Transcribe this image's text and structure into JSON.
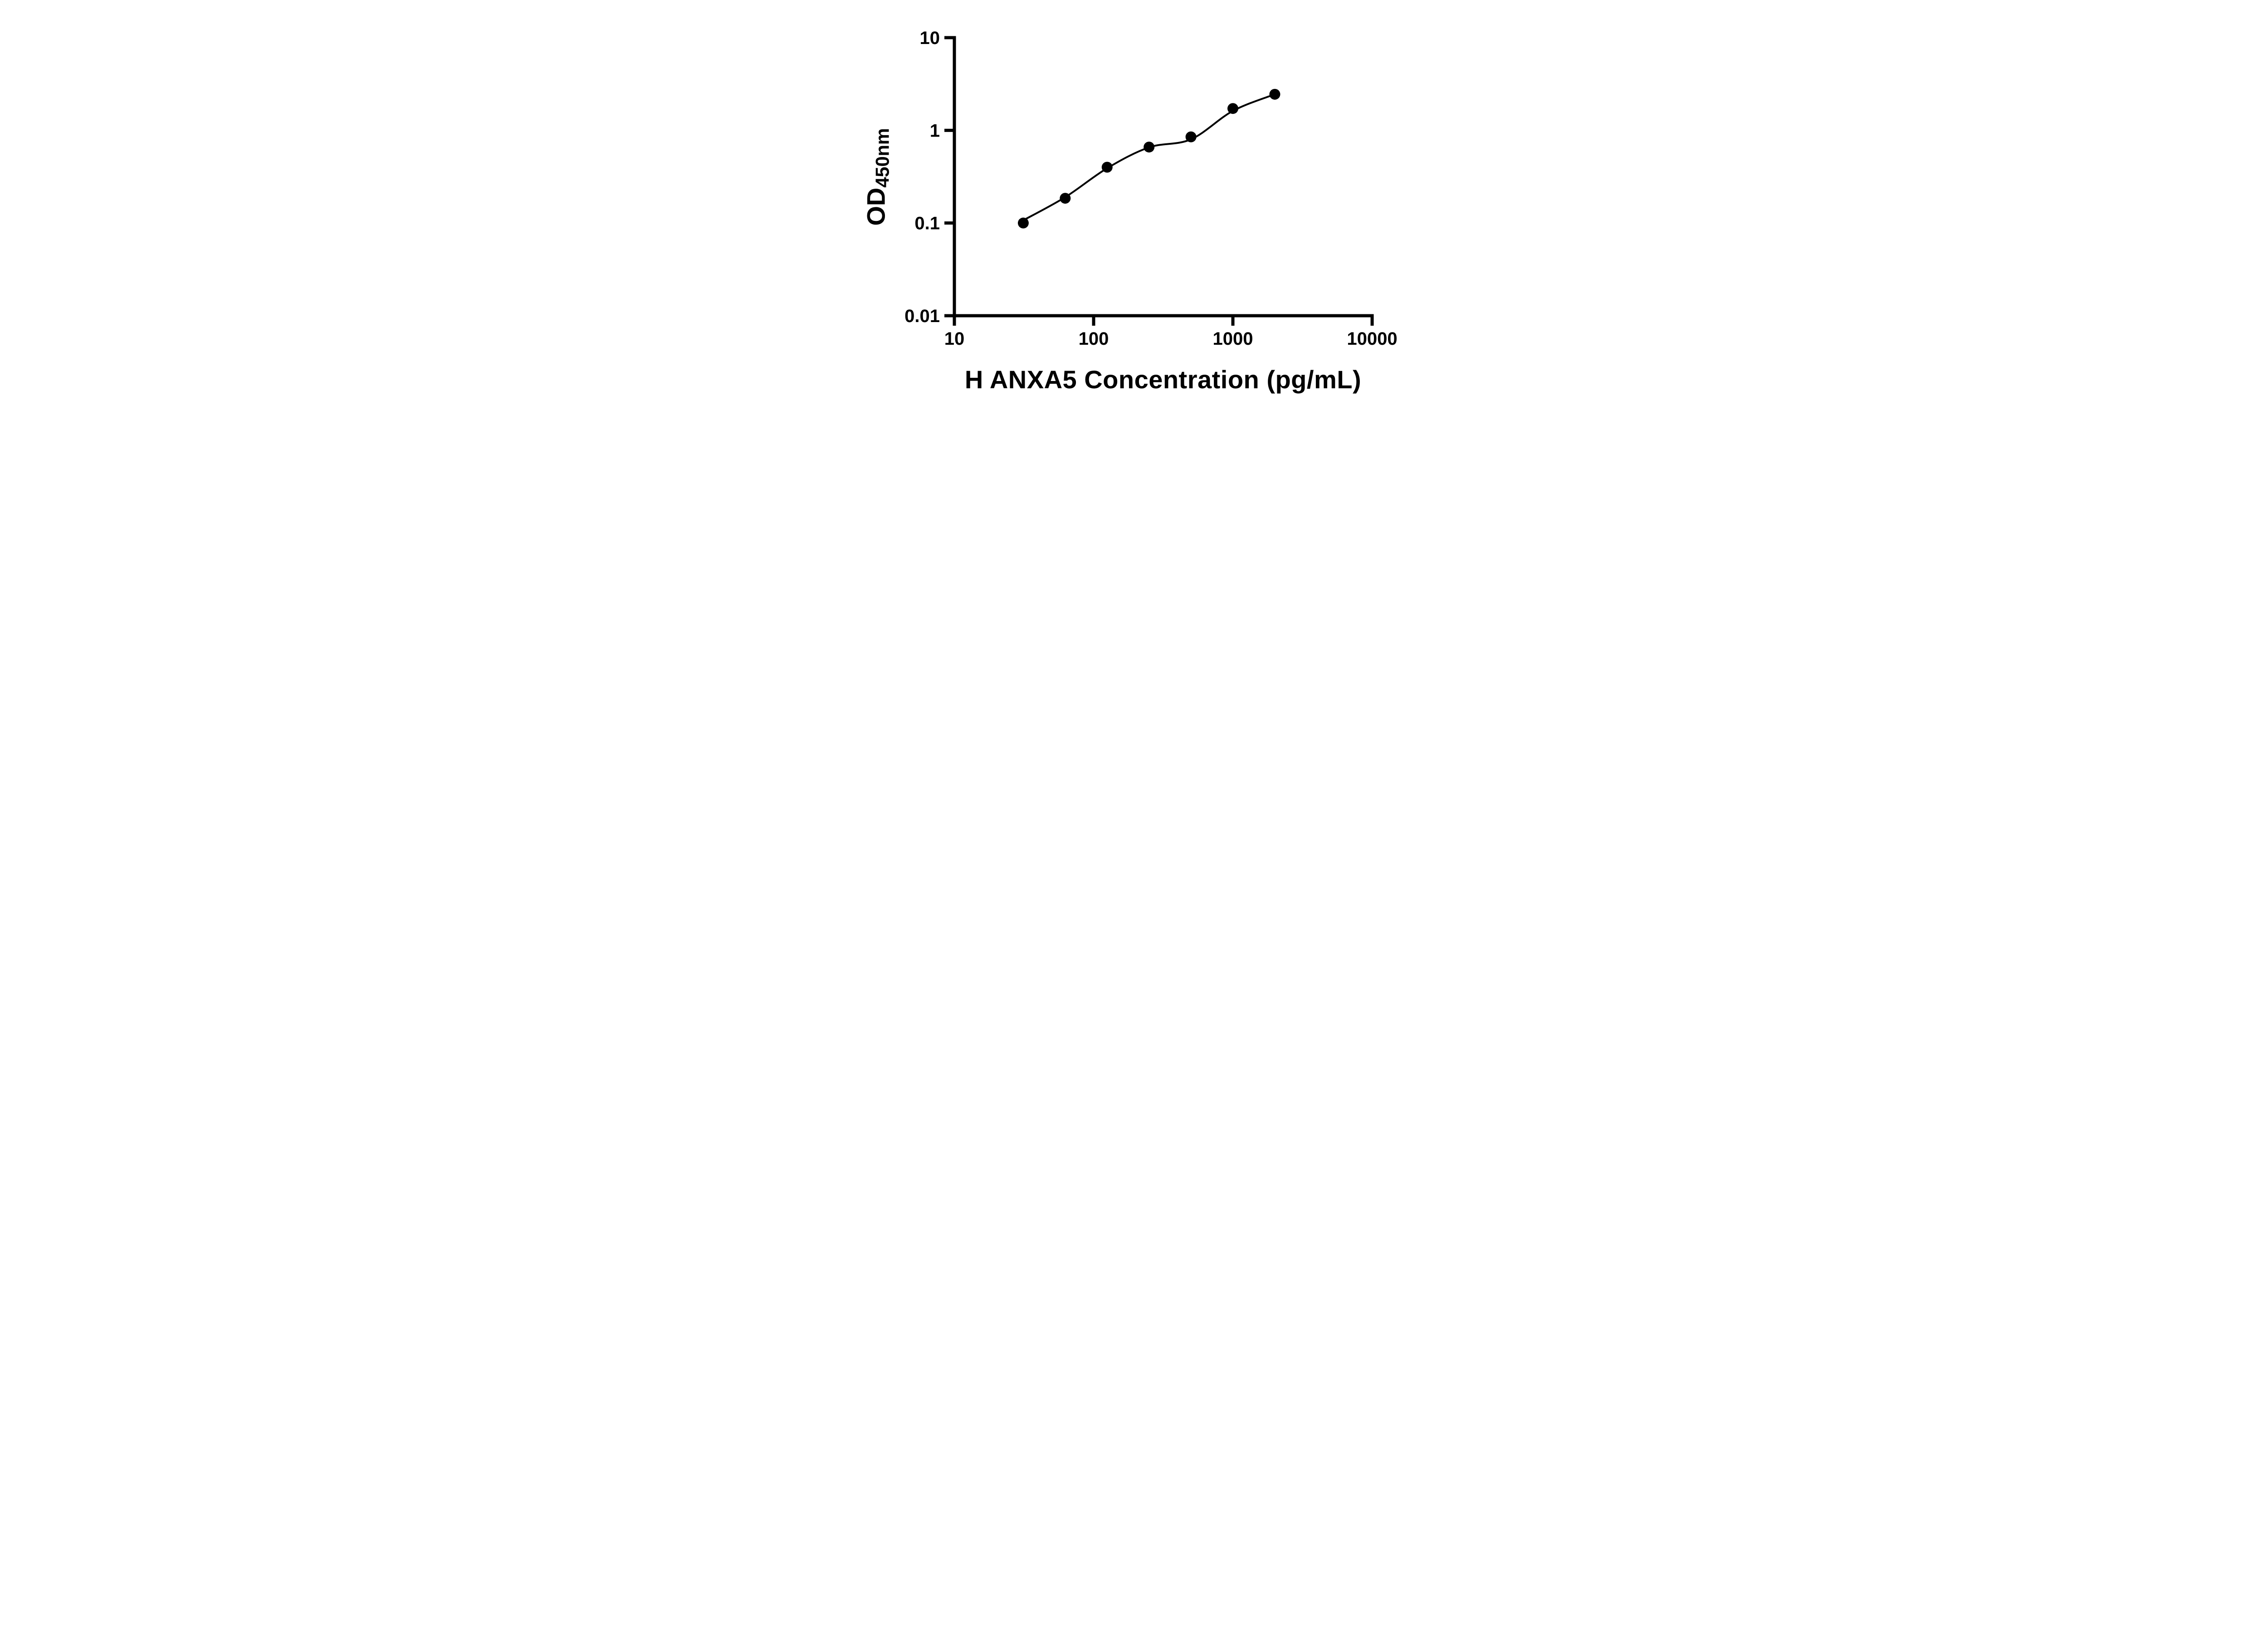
{
  "figure": {
    "background": "#ffffff",
    "axis_color": "#000000"
  },
  "chart_data": {
    "type": "scatter",
    "title": "",
    "xlabel": "H ANXA5 Concentration (pg/mL)",
    "ylabel": {
      "main": "OD",
      "sub": "450nm"
    },
    "x_scale": "log10",
    "y_scale": "log10",
    "xlim": [
      10,
      10000
    ],
    "ylim": [
      0.01,
      10
    ],
    "x_ticks": {
      "values": [
        10,
        100,
        1000,
        10000
      ],
      "labels": [
        "10",
        "100",
        "1000",
        "10000"
      ]
    },
    "y_ticks": {
      "values": [
        10,
        1,
        0.1,
        0.01
      ],
      "labels": [
        "10",
        "1",
        "0.1",
        "0.01"
      ]
    },
    "grid": false,
    "legend": "none",
    "series": [
      {
        "name": "standard-points",
        "marker": "filled-circle",
        "marker_color": "#000000",
        "x": [
          31.25,
          62.5,
          125,
          250,
          500,
          1000,
          2000
        ],
        "y": [
          0.1,
          0.185,
          0.4,
          0.66,
          0.85,
          1.72,
          2.45
        ]
      }
    ],
    "fit_line": {
      "name": "fit-curve",
      "color": "#000000",
      "x": [
        31.25,
        62.5,
        125,
        250,
        500,
        1000,
        2000
      ],
      "y": [
        0.107,
        0.19,
        0.39,
        0.655,
        0.8,
        1.62,
        2.45
      ]
    }
  }
}
